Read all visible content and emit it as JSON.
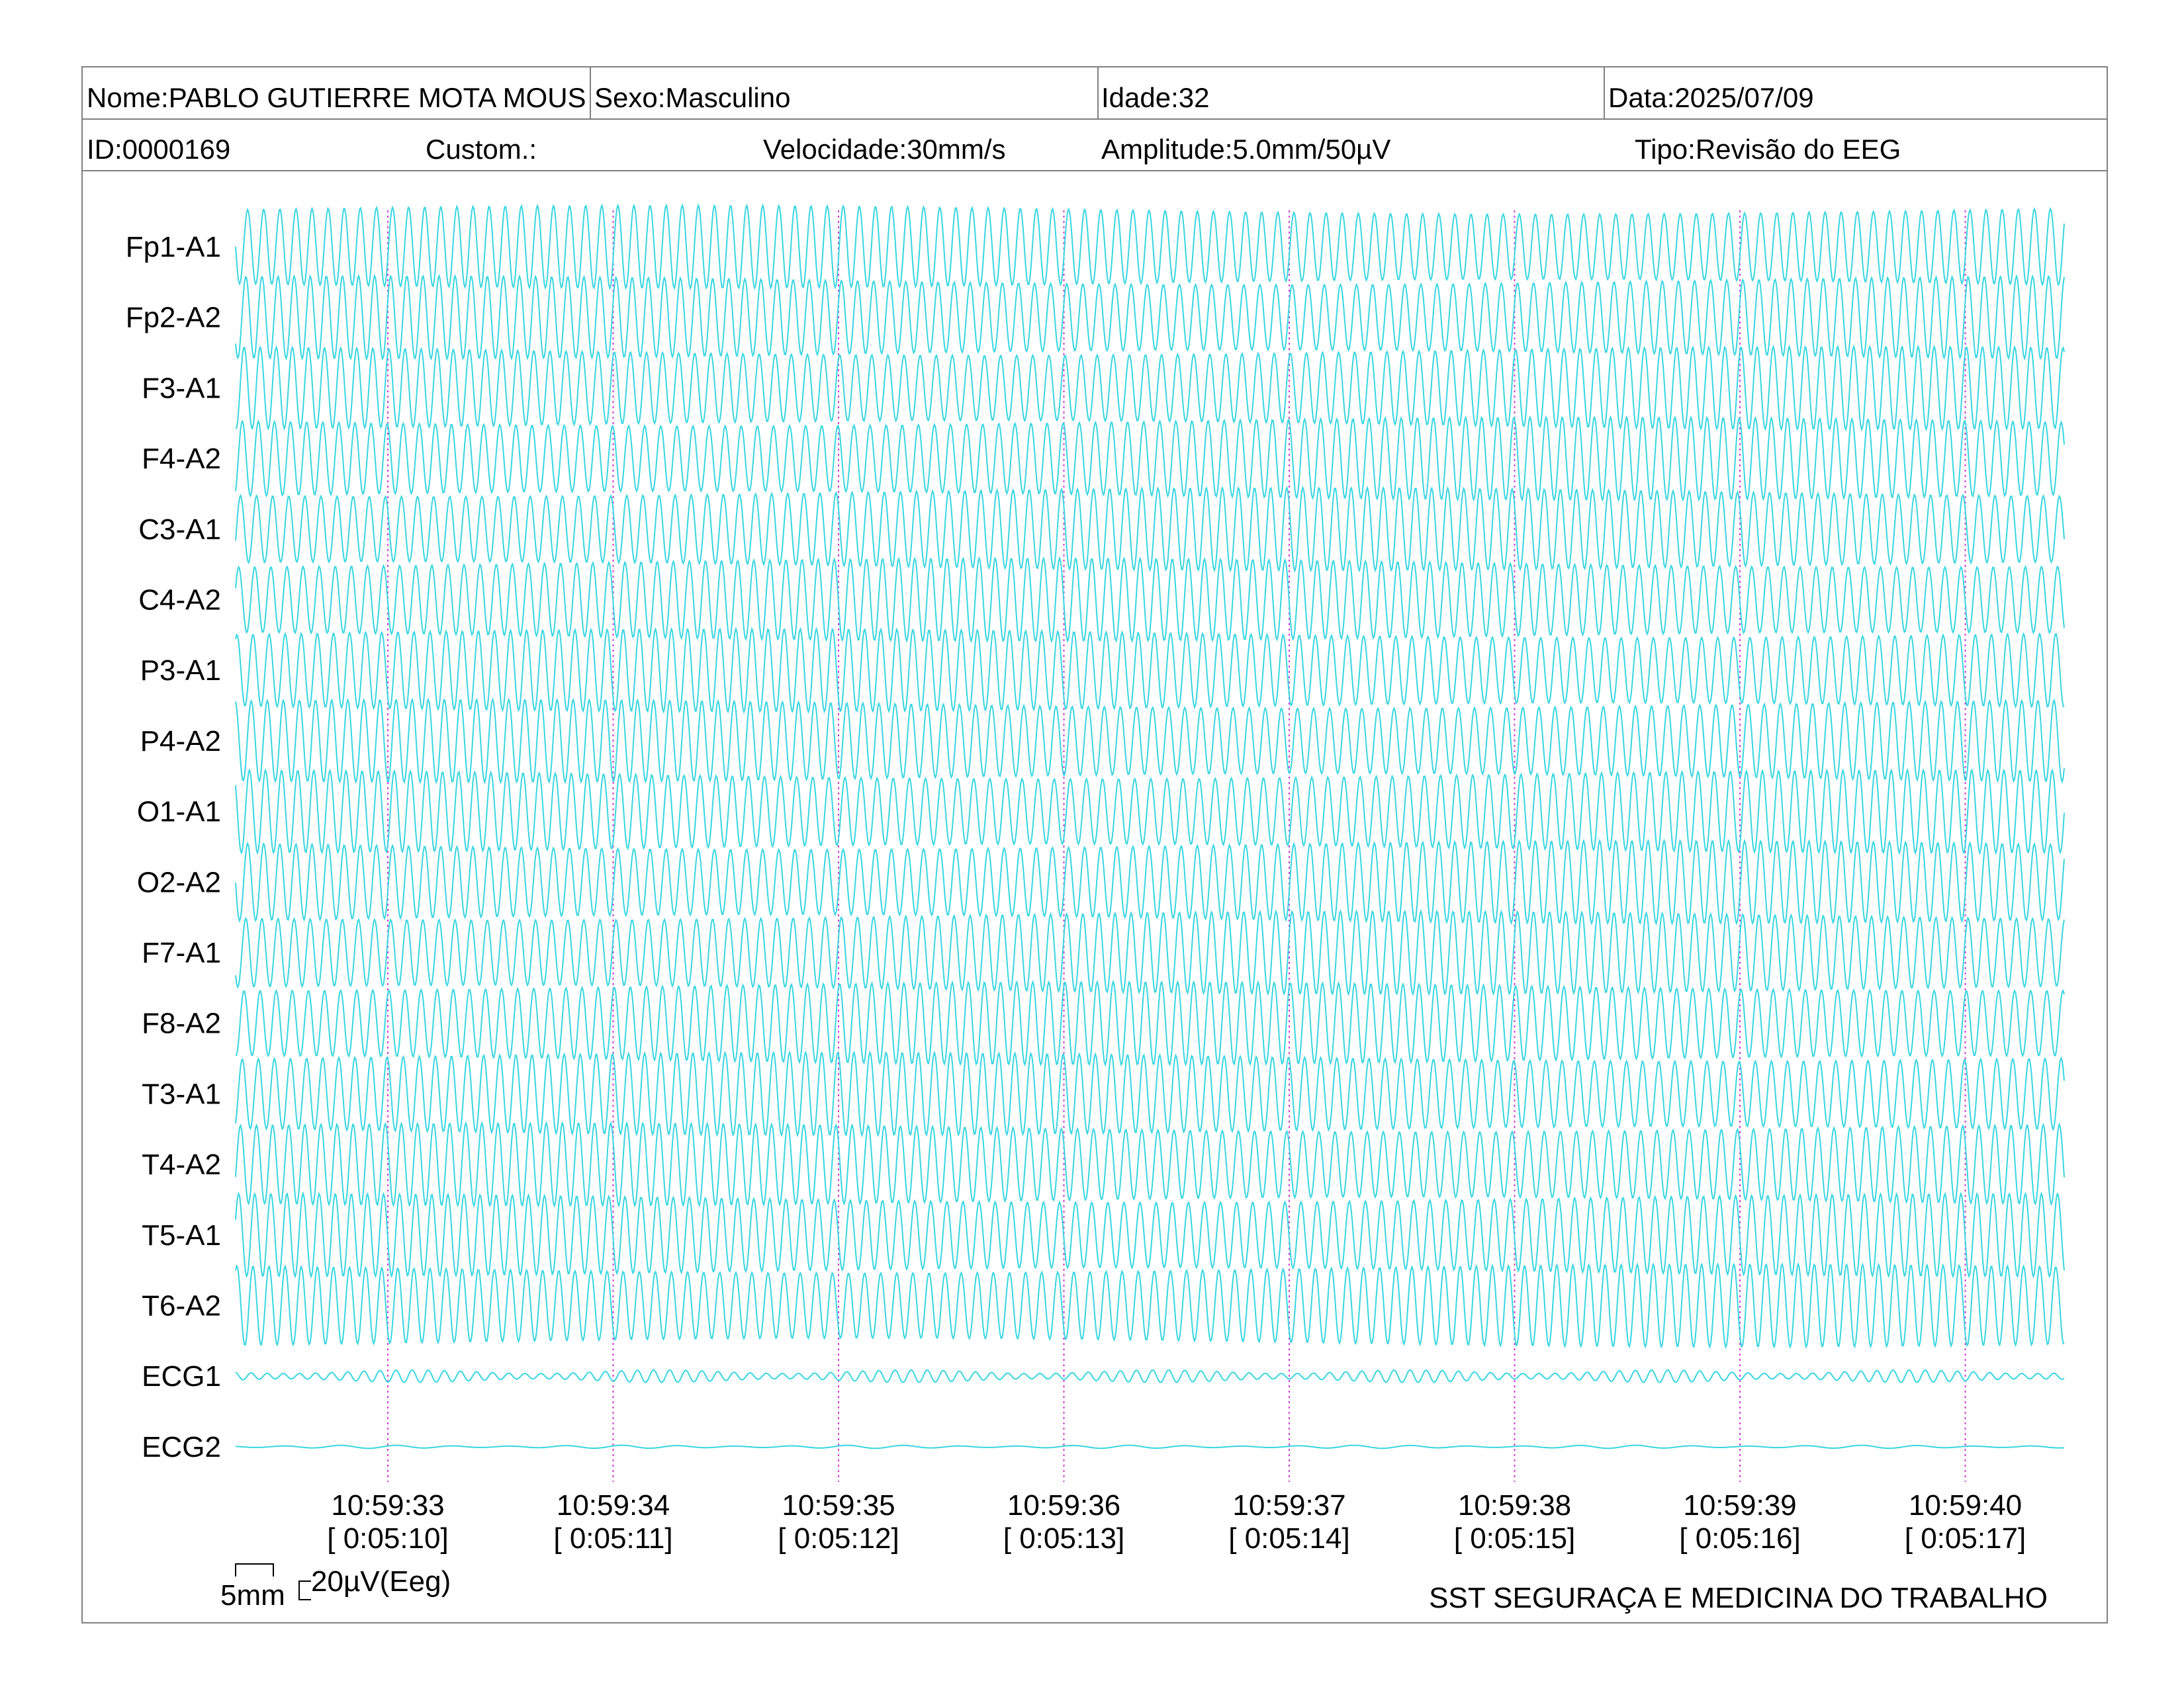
{
  "header": {
    "nome": "Nome:PABLO GUTIERRE MOTA MOUS",
    "sexo": "Sexo:Masculino",
    "idade": "Idade:32",
    "data": "Data:2025/07/09",
    "id": "ID:0000169",
    "custom": "Custom.:",
    "velocidade": "Velocidade:30mm/s",
    "amplitude": "Amplitude:5.0mm/50µV",
    "tipo": "Tipo:Revisão do EEG"
  },
  "calibration": {
    "time_label": "5mm",
    "amp_label": "20µV(Eeg)"
  },
  "footer": {
    "institution": "SST SEGURAÇA E MEDICINA DO TRABALHO"
  },
  "colors": {
    "trace": "#38d6e0",
    "marker": "#d23ad6",
    "border": "#808080"
  },
  "chart_data": {
    "type": "line",
    "title": "",
    "xlabel": "",
    "ylabel": "",
    "grid": false,
    "x_range": [
      "10:59:32.3",
      "10:59:40.4"
    ],
    "leads": [
      {
        "name": "Fp1-A1",
        "cycles_per_second": 14,
        "relative_amplitude": 1.0
      },
      {
        "name": "Fp2-A2",
        "cycles_per_second": 14,
        "relative_amplitude": 1.0
      },
      {
        "name": "F3-A1",
        "cycles_per_second": 14,
        "relative_amplitude": 1.0
      },
      {
        "name": "F4-A2",
        "cycles_per_second": 14,
        "relative_amplitude": 1.0
      },
      {
        "name": "C3-A1",
        "cycles_per_second": 14,
        "relative_amplitude": 1.0
      },
      {
        "name": "C4-A2",
        "cycles_per_second": 14,
        "relative_amplitude": 1.0
      },
      {
        "name": "P3-A1",
        "cycles_per_second": 14,
        "relative_amplitude": 1.0
      },
      {
        "name": "P4-A2",
        "cycles_per_second": 14,
        "relative_amplitude": 1.0
      },
      {
        "name": "O1-A1",
        "cycles_per_second": 14,
        "relative_amplitude": 1.0
      },
      {
        "name": "O2-A2",
        "cycles_per_second": 14,
        "relative_amplitude": 1.0
      },
      {
        "name": "F7-A1",
        "cycles_per_second": 14,
        "relative_amplitude": 1.0
      },
      {
        "name": "F8-A2",
        "cycles_per_second": 14,
        "relative_amplitude": 1.0
      },
      {
        "name": "T3-A1",
        "cycles_per_second": 14,
        "relative_amplitude": 1.0
      },
      {
        "name": "T4-A2",
        "cycles_per_second": 14,
        "relative_amplitude": 1.0
      },
      {
        "name": "T5-A1",
        "cycles_per_second": 14,
        "relative_amplitude": 1.0
      },
      {
        "name": "T6-A2",
        "cycles_per_second": 14,
        "relative_amplitude": 1.0
      },
      {
        "name": "ECG1",
        "cycles_per_second": 14,
        "relative_amplitude": 0.12
      },
      {
        "name": "ECG2",
        "cycles_per_second": 4,
        "relative_amplitude": 0.03
      }
    ],
    "time_markers": [
      {
        "clock": "10:59:33",
        "elapsed": "[ 0:05:10]"
      },
      {
        "clock": "10:59:34",
        "elapsed": "[ 0:05:11]"
      },
      {
        "clock": "10:59:35",
        "elapsed": "[ 0:05:12]"
      },
      {
        "clock": "10:59:36",
        "elapsed": "[ 0:05:13]"
      },
      {
        "clock": "10:59:37",
        "elapsed": "[ 0:05:14]"
      },
      {
        "clock": "10:59:38",
        "elapsed": "[ 0:05:15]"
      },
      {
        "clock": "10:59:39",
        "elapsed": "[ 0:05:16]"
      },
      {
        "clock": "10:59:40",
        "elapsed": "[ 0:05:17]"
      }
    ]
  }
}
